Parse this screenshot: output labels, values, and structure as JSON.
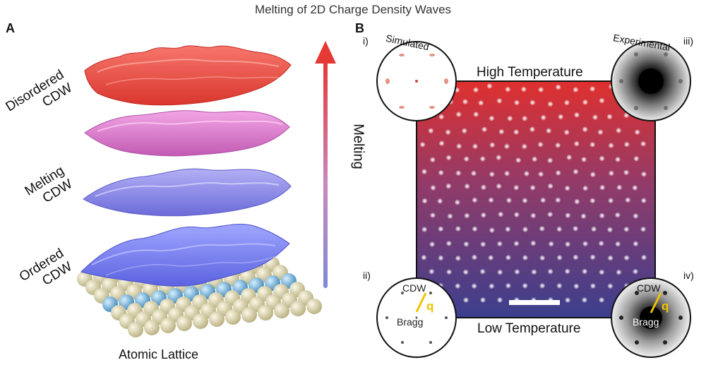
{
  "title": "Melting of 2D Charge Density Waves",
  "panel_a": {
    "label": "A",
    "layers": [
      {
        "line1": "Disordered",
        "line2": "CDW",
        "color": "#e8483f"
      },
      {
        "line1": "Melting",
        "line2": "CDW",
        "color": "#d873c6"
      },
      {
        "line1": "Ordered",
        "line2": "CDW",
        "color": "#7472e0"
      }
    ],
    "lattice_label": "Atomic Lattice",
    "arrow_label": "Melting"
  },
  "panel_b": {
    "label": "B",
    "high_temp": "High Temperature",
    "low_temp": "Low Temperature",
    "insets": {
      "i": {
        "roman": "i)",
        "caption": "Simulated"
      },
      "ii": {
        "roman": "ii)",
        "cdw": "CDW",
        "bragg": "Bragg",
        "q": "q"
      },
      "iii": {
        "roman": "iii)",
        "caption": "Experimental"
      },
      "iv": {
        "roman": "iv)",
        "cdw": "CDW",
        "bragg": "Bragg",
        "q": "q"
      }
    }
  },
  "colors": {
    "red": "#e53935",
    "blue": "#3b3f8e",
    "gold": "#f2c200",
    "lattice_beige": "#e6dfb6",
    "lattice_blue": "#6fb2d6"
  }
}
